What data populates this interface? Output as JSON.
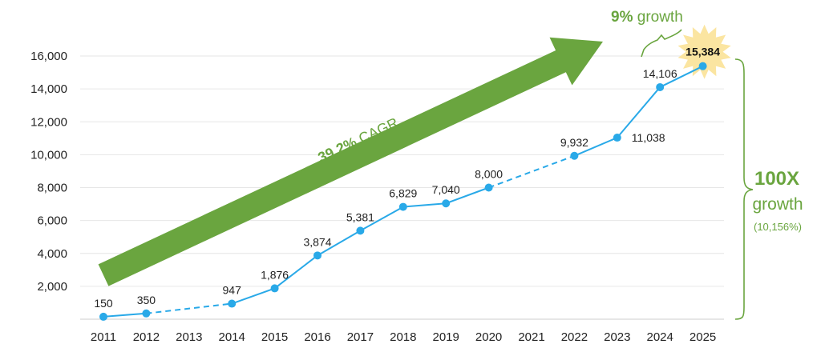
{
  "chart_data": {
    "type": "line",
    "x": [
      "2011",
      "2012",
      "2013",
      "2014",
      "2015",
      "2016",
      "2017",
      "2018",
      "2019",
      "2020",
      "2021",
      "2022",
      "2023",
      "2024",
      "2025"
    ],
    "points": [
      {
        "x": "2011",
        "y": 150,
        "label": "150"
      },
      {
        "x": "2012",
        "y": 350,
        "label": "350"
      },
      {
        "x": "2014",
        "y": 947,
        "label": "947"
      },
      {
        "x": "2015",
        "y": 1876,
        "label": "1,876"
      },
      {
        "x": "2016",
        "y": 3874,
        "label": "3,874"
      },
      {
        "x": "2017",
        "y": 5381,
        "label": "5,381"
      },
      {
        "x": "2018",
        "y": 6829,
        "label": "6,829"
      },
      {
        "x": "2019",
        "y": 7040,
        "label": "7,040"
      },
      {
        "x": "2020",
        "y": 8000,
        "label": "8,000"
      },
      {
        "x": "2022",
        "y": 9932,
        "label": "9,932"
      },
      {
        "x": "2023",
        "y": 11038,
        "label": "11,038"
      },
      {
        "x": "2024",
        "y": 14106,
        "label": "14,106"
      },
      {
        "x": "2025",
        "y": 15384,
        "label": "15,384"
      }
    ],
    "dashed_segments": [
      [
        "2012",
        "2014"
      ],
      [
        "2020",
        "2022"
      ]
    ],
    "highlight_point": "2025",
    "yticks": [
      2000,
      4000,
      6000,
      8000,
      10000,
      12000,
      14000,
      16000
    ],
    "ytick_labels": [
      "2,000",
      "4,000",
      "6,000",
      "8,000",
      "10,000",
      "12,000",
      "14,000",
      "16,000"
    ],
    "ylim": [
      0,
      16000
    ],
    "grid": true,
    "title": "",
    "xlabel": "",
    "ylabel": "",
    "colors": {
      "line": "#29a9e8",
      "arrow": "#6aa53f",
      "annotation": "#6aa53f",
      "starburst": "#fbe5a1",
      "grid": "#e6e6e6"
    },
    "annotations": {
      "cagr": {
        "value": "39.2%",
        "text": " CAGR"
      },
      "top_growth": {
        "value": "9%",
        "text": " growth"
      },
      "total_growth": {
        "value": "100X",
        "text": "growth",
        "detail": "(10,156%)"
      }
    }
  }
}
